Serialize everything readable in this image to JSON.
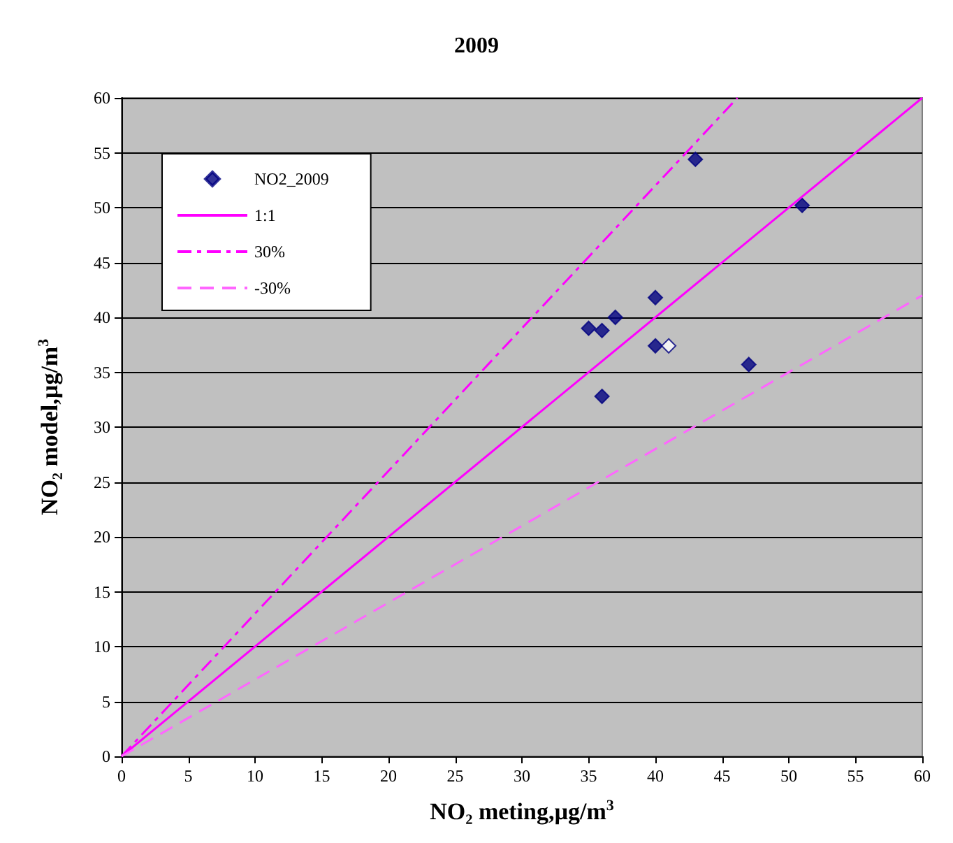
{
  "chart_data": {
    "type": "scatter",
    "title": "2009",
    "xlabel": "NO₂ meting,µg/m$^{3}$",
    "ylabel": "NO₂ model,µg/m$^{3}$",
    "xlim": [
      0,
      60
    ],
    "ylim": [
      0,
      60
    ],
    "xticks": [
      0,
      5,
      10,
      15,
      20,
      25,
      30,
      35,
      40,
      45,
      50,
      55,
      60
    ],
    "yticks": [
      0,
      5,
      10,
      15,
      20,
      25,
      30,
      35,
      40,
      45,
      50,
      55,
      60
    ],
    "grid": "y",
    "legend": "top left",
    "marker": "diamond",
    "series": [
      {
        "name": "NO2_2009",
        "color": "#000080",
        "x": [
          35,
          36,
          37,
          36,
          40,
          40,
          41,
          43,
          47,
          51
        ],
        "values": [
          39,
          38.8,
          40,
          32.8,
          41.8,
          37.4,
          37.4,
          54.4,
          35.7,
          50.2
        ],
        "colors": [
          "#000080",
          "#000080",
          "#000080",
          "#000080",
          "#000080",
          "#000080",
          "#ffffff",
          "#000080",
          "#000080",
          "#000080"
        ]
      },
      {
        "name": "1:1",
        "type": "line",
        "color": "#ff00ff",
        "marker": "none",
        "line_style": "solid",
        "x": [
          0,
          60
        ],
        "values": [
          0,
          60
        ]
      },
      {
        "name": "30%",
        "type": "line",
        "color": "#ff00ff",
        "marker": "none",
        "line_style": "dashdot",
        "x": [
          0,
          46.15
        ],
        "values": [
          0,
          60
        ]
      },
      {
        "name": "-30%",
        "type": "line",
        "color": "#ff66ff",
        "marker": "none",
        "line_style": "dashed",
        "x": [
          0,
          60
        ],
        "values": [
          0,
          42
        ]
      }
    ]
  }
}
